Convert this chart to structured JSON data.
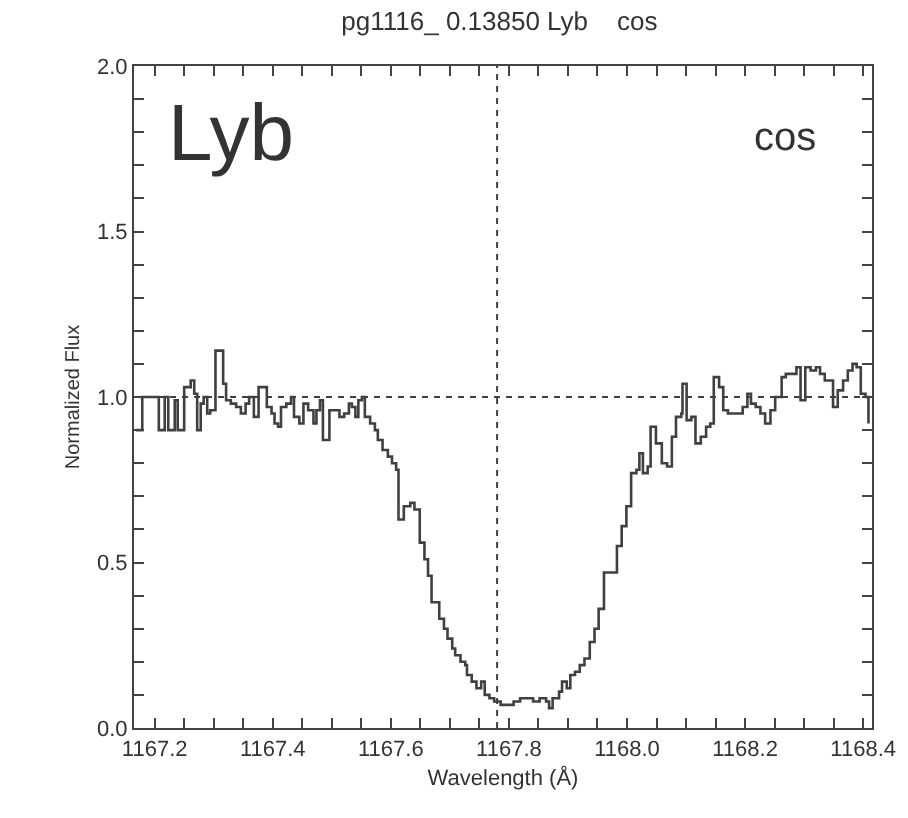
{
  "chart_data": {
    "type": "step",
    "title": "pg1116_ 0.13850 Lyb    cos",
    "xlabel": "Wavelength (Å)",
    "ylabel": "Normalized Flux",
    "annotations": [
      "Lyb",
      "cos"
    ],
    "x": [
      1167.168,
      1167.179,
      1167.201,
      1167.207,
      1167.217,
      1167.223,
      1167.234,
      1167.239,
      1167.25,
      1167.261,
      1167.267,
      1167.272,
      1167.278,
      1167.283,
      1167.289,
      1167.294,
      1167.303,
      1167.31,
      1167.316,
      1167.321,
      1167.329,
      1167.338,
      1167.346,
      1167.354,
      1167.36,
      1167.368,
      1167.376,
      1167.384,
      1167.39,
      1167.398,
      1167.403,
      1167.409,
      1167.414,
      1167.423,
      1167.431,
      1167.436,
      1167.445,
      1167.452,
      1167.46,
      1167.469,
      1167.474,
      1167.48,
      1167.485,
      1167.496,
      1167.507,
      1167.513,
      1167.521,
      1167.529,
      1167.534,
      1167.54,
      1167.545,
      1167.551,
      1167.556,
      1167.565,
      1167.573,
      1167.578,
      1167.586,
      1167.595,
      1167.602,
      1167.609,
      1167.613,
      1167.622,
      1167.633,
      1167.64,
      1167.649,
      1167.657,
      1167.663,
      1167.669,
      1167.677,
      1167.682,
      1167.69,
      1167.696,
      1167.704,
      1167.709,
      1167.718,
      1167.726,
      1167.729,
      1167.737,
      1167.745,
      1167.753,
      1167.759,
      1167.767,
      1167.775,
      1167.786,
      1167.797,
      1167.808,
      1167.819,
      1167.83,
      1167.841,
      1167.852,
      1167.863,
      1167.868,
      1167.874,
      1167.885,
      1167.89,
      1167.898,
      1167.904,
      1167.912,
      1167.92,
      1167.928,
      1167.937,
      1167.945,
      1167.952,
      1167.961,
      1167.972,
      1167.983,
      1167.991,
      1167.999,
      1168.007,
      1168.016,
      1168.021,
      1168.027,
      1168.035,
      1168.04,
      1168.049,
      1168.059,
      1168.068,
      1168.076,
      1168.083,
      1168.092,
      1168.094,
      1168.101,
      1168.109,
      1168.116,
      1168.125,
      1168.134,
      1168.141,
      1168.147,
      1168.156,
      1168.163,
      1168.171,
      1168.18,
      1168.188,
      1168.196,
      1168.204,
      1168.21,
      1168.218,
      1168.226,
      1168.234,
      1168.243,
      1168.251,
      1168.262,
      1168.269,
      1168.278,
      1168.287,
      1168.294,
      1168.302,
      1168.311,
      1168.32,
      1168.327,
      1168.335,
      1168.344,
      1168.349,
      1168.357,
      1168.366,
      1168.374,
      1168.382,
      1168.389,
      1168.396,
      1168.404,
      1168.409
    ],
    "series": [
      {
        "color": "#404040",
        "values": [
          0.9,
          1.0,
          1.0,
          0.9,
          1.0,
          0.9,
          0.99,
          0.9,
          1.03,
          1.05,
          1.01,
          0.9,
          0.98,
          1.0,
          0.95,
          0.96,
          1.14,
          1.14,
          1.04,
          0.99,
          0.98,
          0.97,
          0.95,
          0.98,
          1.0,
          0.94,
          1.03,
          1.03,
          0.97,
          0.95,
          0.92,
          0.91,
          0.97,
          0.98,
          1.0,
          0.94,
          0.92,
          0.98,
          0.96,
          0.92,
          0.96,
          0.99,
          0.87,
          0.96,
          0.96,
          0.94,
          0.95,
          0.98,
          0.97,
          0.94,
          0.99,
          1.0,
          0.94,
          0.92,
          0.9,
          0.87,
          0.84,
          0.82,
          0.8,
          0.78,
          0.63,
          0.67,
          0.68,
          0.66,
          0.56,
          0.51,
          0.46,
          0.38,
          0.38,
          0.33,
          0.3,
          0.27,
          0.24,
          0.22,
          0.2,
          0.19,
          0.16,
          0.14,
          0.12,
          0.14,
          0.1,
          0.09,
          0.08,
          0.07,
          0.07,
          0.08,
          0.09,
          0.09,
          0.08,
          0.09,
          0.08,
          0.06,
          0.09,
          0.11,
          0.14,
          0.12,
          0.16,
          0.17,
          0.19,
          0.21,
          0.26,
          0.3,
          0.36,
          0.47,
          0.47,
          0.55,
          0.61,
          0.67,
          0.77,
          0.78,
          0.83,
          0.77,
          0.79,
          0.91,
          0.86,
          0.8,
          0.79,
          0.88,
          0.94,
          0.95,
          1.04,
          0.93,
          0.94,
          0.86,
          0.88,
          0.91,
          0.92,
          1.06,
          1.03,
          0.96,
          0.95,
          0.95,
          0.95,
          0.97,
          1.01,
          0.98,
          0.97,
          0.95,
          0.92,
          0.96,
          1.0,
          1.06,
          1.07,
          1.07,
          1.09,
          0.99,
          1.09,
          1.08,
          1.09,
          1.07,
          1.05,
          1.05,
          0.97,
          1.02,
          1.05,
          1.08,
          1.1,
          1.09,
          1.01,
          1.0,
          0.92
        ]
      }
    ],
    "xlim": [
      1167.165,
      1168.415
    ],
    "xticks": [
      1167.2,
      1167.4,
      1167.6,
      1167.8,
      {
        "value": 1168.0,
        "label": "1168.0"
      },
      1168.2,
      1168.4,
      {
        "value": 1167.25,
        "label": null
      },
      {
        "value": 1167.3,
        "label": null
      },
      {
        "value": 1167.35,
        "label": null
      },
      {
        "value": 1167.45,
        "label": null
      },
      {
        "value": 1167.5,
        "label": null
      },
      {
        "value": 1167.55,
        "label": null
      },
      {
        "value": 1167.65,
        "label": null
      },
      {
        "value": 1167.7,
        "label": null
      },
      {
        "value": 1167.75,
        "label": null
      },
      {
        "value": 1167.85,
        "label": null
      },
      {
        "value": 1167.9,
        "label": null
      },
      {
        "value": 1167.95,
        "label": null
      },
      {
        "value": 1168.05,
        "label": null
      },
      {
        "value": 1168.1,
        "label": null
      },
      {
        "value": 1168.15,
        "label": null
      },
      {
        "value": 1168.25,
        "label": null
      },
      {
        "value": 1168.3,
        "label": null
      },
      {
        "value": 1168.35,
        "label": null
      }
    ],
    "ylim": [
      0,
      2
    ],
    "yticks": [
      {
        "value": 0,
        "label": "0.0"
      },
      {
        "value": 0.5,
        "label": "0.5"
      },
      {
        "value": 1,
        "label": "1.0"
      },
      {
        "value": 1.5,
        "label": "1.5"
      },
      {
        "value": 2,
        "label": "2.0"
      },
      {
        "value": 0.1,
        "label": null
      },
      {
        "value": 0.2,
        "label": null
      },
      {
        "value": 0.3,
        "label": null
      },
      {
        "value": 0.4,
        "label": null
      },
      {
        "value": 0.6,
        "label": null
      },
      {
        "value": 0.7,
        "label": null
      },
      {
        "value": 0.8,
        "label": null
      },
      {
        "value": 0.9,
        "label": null
      },
      {
        "value": 1.1,
        "label": null
      },
      {
        "value": 1.2,
        "label": null
      },
      {
        "value": 1.3,
        "label": null
      },
      {
        "value": 1.4,
        "label": null
      },
      {
        "value": 1.6,
        "label": null
      },
      {
        "value": 1.7,
        "label": null
      },
      {
        "value": 1.8,
        "label": null
      },
      {
        "value": 1.9,
        "label": null
      }
    ],
    "ref_lines": [
      {
        "axis": "x",
        "value": 1167.78,
        "line_style": "dotted",
        "color": "#404040"
      },
      {
        "axis": "y",
        "value": 1.0,
        "line_style": "dotted",
        "color": "#404040"
      }
    ],
    "grid": false,
    "line_style": "solid"
  }
}
